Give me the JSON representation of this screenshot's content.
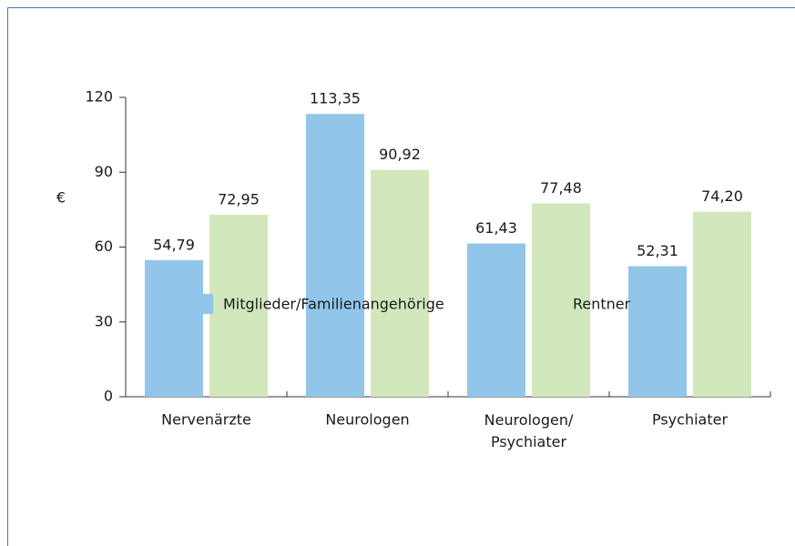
{
  "chart_data": {
    "type": "bar",
    "y_label": "€",
    "categories": [
      "Nervenärzte",
      "Neurologen",
      "Neurologen/\nPsychiater",
      "Psychiater"
    ],
    "series": [
      {
        "name": "Mitglieder/Familienangehörige",
        "color": "#92c5ea",
        "values": [
          54.79,
          113.35,
          61.43,
          52.31
        ],
        "value_labels": [
          "54,79",
          "113,35",
          "61,43",
          "52,31"
        ]
      },
      {
        "name": "Rentner",
        "color": "#d2e8bc",
        "values": [
          72.95,
          90.92,
          77.48,
          74.2
        ],
        "value_labels": [
          "72,95",
          "90,92",
          "77,48",
          "74,20"
        ]
      }
    ],
    "ylim": [
      0,
      120
    ],
    "yticks": [
      0,
      30,
      60,
      90,
      120
    ],
    "grid": false
  }
}
